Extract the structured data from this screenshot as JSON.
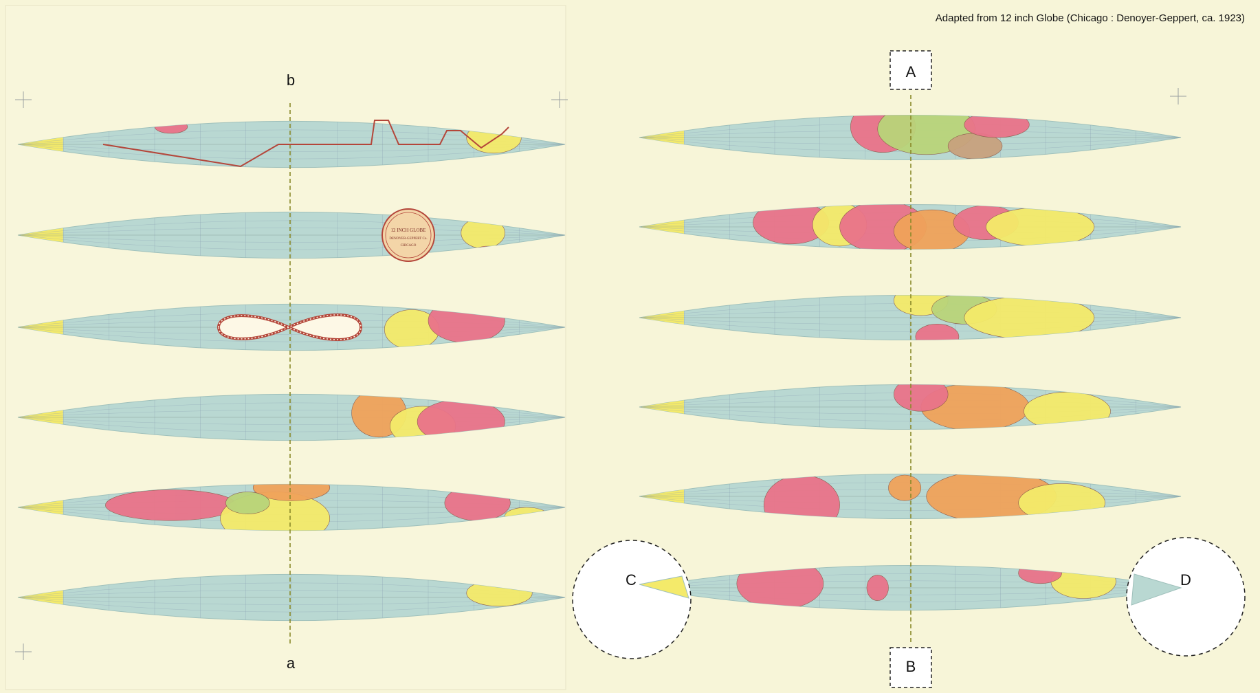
{
  "caption": "Adapted from 12 inch Globe (Chicago : Denoyer-Geppert, ca. 1923)",
  "labels": {
    "b": "b",
    "a": "a",
    "A": "A",
    "B": "B",
    "C": "C",
    "D": "D"
  },
  "seal": {
    "line1": "12 INCH GLOBE",
    "line2": "DENOYER-GEPPERT Co.",
    "line3": "CHICAGO"
  },
  "colors": {
    "paper": "#f7f5d8",
    "ocean": "#b9d8d2",
    "yellow": "#f4ea6a",
    "pink": "#e9738a",
    "orange": "#f0a35a",
    "green": "#b9d47a",
    "tan": "#c8a27e",
    "purple": "#b49ab5",
    "grid": "#8a9fb3",
    "line_red": "#b4463a"
  }
}
